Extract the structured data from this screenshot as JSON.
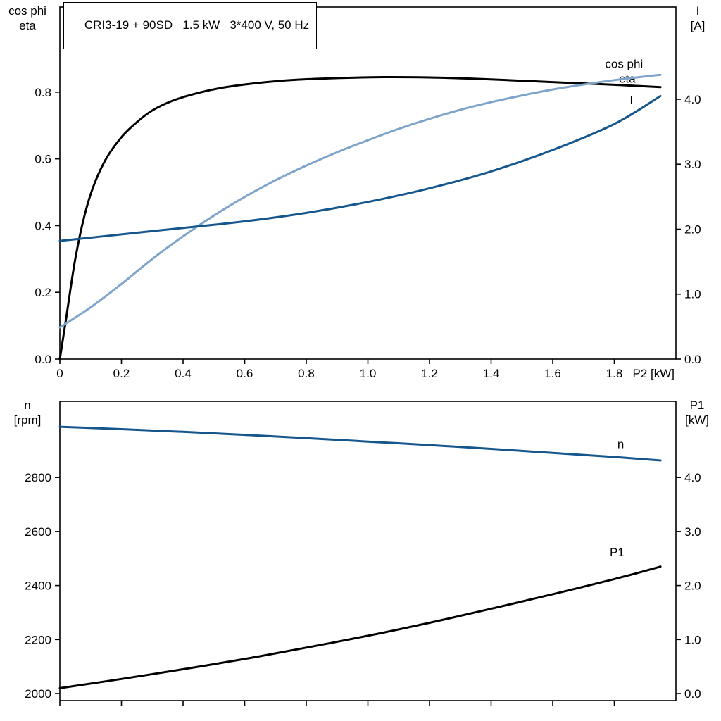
{
  "title_box": {
    "text": "CRI3-19 + 90SD   1.5 kW   3*400 V, 50 Hz"
  },
  "chart_data": [
    {
      "type": "line",
      "name": "motor-electrical-curves",
      "title": "CRI3-19 + 90SD   1.5 kW   3*400 V, 50 Hz",
      "grid": false,
      "x_axis": {
        "min": 0,
        "max": 2.0,
        "ticks": [
          0,
          0.2,
          0.4,
          0.6,
          0.8,
          1.0,
          1.2,
          1.4,
          1.6,
          1.8
        ],
        "tick_labels": [
          "0",
          "0.2",
          "0.4",
          "0.6",
          "0.8",
          "1.0",
          "1.2",
          "1.4",
          "1.6",
          "1.8"
        ],
        "end_label": "P2 [kW]"
      },
      "left_axis": {
        "title_lines": [
          "cos phi",
          "eta"
        ],
        "min": 0,
        "max": 1.055,
        "ticks": [
          0,
          0.2,
          0.4,
          0.6,
          0.8
        ],
        "labels": [
          "0.0",
          "0.2",
          "0.4",
          "0.6",
          "0.8"
        ]
      },
      "right_axis": {
        "title_lines": [
          "I",
          "[A]"
        ],
        "min": 0,
        "max": 5.42,
        "ticks": [
          0,
          1,
          2,
          3,
          4
        ],
        "labels": [
          "0.0",
          "1.0",
          "2.0",
          "3.0",
          "4.0"
        ]
      },
      "series": [
        {
          "name": "eta",
          "color": "#000000",
          "axis": "left",
          "label": {
            "text": "eta",
            "x": 1.815,
            "y": 0.828
          },
          "points": [
            [
              0,
              0
            ],
            [
              0.02,
              0.12
            ],
            [
              0.05,
              0.3
            ],
            [
              0.08,
              0.43
            ],
            [
              0.11,
              0.52
            ],
            [
              0.15,
              0.6
            ],
            [
              0.2,
              0.665
            ],
            [
              0.25,
              0.71
            ],
            [
              0.3,
              0.745
            ],
            [
              0.36,
              0.772
            ],
            [
              0.43,
              0.793
            ],
            [
              0.52,
              0.812
            ],
            [
              0.62,
              0.825
            ],
            [
              0.75,
              0.836
            ],
            [
              0.9,
              0.842
            ],
            [
              1.05,
              0.845
            ],
            [
              1.2,
              0.844
            ],
            [
              1.35,
              0.84
            ],
            [
              1.5,
              0.834
            ],
            [
              1.65,
              0.828
            ],
            [
              1.8,
              0.822
            ],
            [
              1.95,
              0.815
            ]
          ]
        },
        {
          "name": "cos phi",
          "color": "#7fa4c9",
          "axis": "left",
          "label": {
            "text": "cos phi",
            "x": 1.77,
            "y": 0.872
          },
          "points": [
            [
              0,
              0.095
            ],
            [
              0.1,
              0.155
            ],
            [
              0.2,
              0.225
            ],
            [
              0.3,
              0.3
            ],
            [
              0.4,
              0.368
            ],
            [
              0.5,
              0.43
            ],
            [
              0.6,
              0.486
            ],
            [
              0.7,
              0.536
            ],
            [
              0.8,
              0.58
            ],
            [
              0.9,
              0.62
            ],
            [
              1.0,
              0.656
            ],
            [
              1.1,
              0.69
            ],
            [
              1.2,
              0.72
            ],
            [
              1.3,
              0.747
            ],
            [
              1.4,
              0.77
            ],
            [
              1.5,
              0.79
            ],
            [
              1.6,
              0.808
            ],
            [
              1.7,
              0.823
            ],
            [
              1.8,
              0.836
            ],
            [
              1.9,
              0.847
            ],
            [
              1.95,
              0.852
            ]
          ]
        },
        {
          "name": "I",
          "color": "#15568d",
          "axis": "right",
          "label": {
            "text": "I",
            "x": 1.85,
            "y": 3.93
          },
          "points": [
            [
              0,
              1.82
            ],
            [
              0.2,
              1.92
            ],
            [
              0.4,
              2.02
            ],
            [
              0.6,
              2.12
            ],
            [
              0.8,
              2.25
            ],
            [
              1.0,
              2.42
            ],
            [
              1.2,
              2.63
            ],
            [
              1.4,
              2.89
            ],
            [
              1.6,
              3.22
            ],
            [
              1.8,
              3.62
            ],
            [
              1.95,
              4.05
            ]
          ]
        }
      ]
    },
    {
      "type": "line",
      "name": "motor-speed-power-curves",
      "title": "",
      "grid": false,
      "x_axis": {
        "min": 0,
        "max": 2.0,
        "ticks": [
          0,
          0.2,
          0.4,
          0.6,
          0.8,
          1.0,
          1.2,
          1.4,
          1.6,
          1.8
        ],
        "tick_labels": [
          "",
          "",
          "",
          "",
          "",
          "",
          "",
          "",
          "",
          ""
        ],
        "end_label": ""
      },
      "left_axis": {
        "title_lines": [
          "n",
          "[rpm]"
        ],
        "min": 1974,
        "max": 3082,
        "ticks": [
          2000,
          2200,
          2400,
          2600,
          2800
        ],
        "labels": [
          "2000",
          "2200",
          "2400",
          "2600",
          "2800"
        ]
      },
      "right_axis": {
        "title_lines": [
          "P1",
          "[kW]"
        ],
        "min": -0.13,
        "max": 5.41,
        "ticks": [
          0,
          1,
          2,
          3,
          4
        ],
        "labels": [
          "0.0",
          "1.0",
          "2.0",
          "3.0",
          "4.0"
        ]
      },
      "series": [
        {
          "name": "n",
          "color": "#15568d",
          "axis": "left",
          "label": {
            "text": "n",
            "x": 1.81,
            "y": 2908
          },
          "points": [
            [
              0,
              2988
            ],
            [
              0.2,
              2979
            ],
            [
              0.4,
              2969
            ],
            [
              0.6,
              2958
            ],
            [
              0.8,
              2946
            ],
            [
              1.0,
              2933
            ],
            [
              1.2,
              2920
            ],
            [
              1.4,
              2906
            ],
            [
              1.6,
              2891
            ],
            [
              1.8,
              2876
            ],
            [
              1.95,
              2863
            ]
          ]
        },
        {
          "name": "P1",
          "color": "#000000",
          "axis": "right",
          "label": {
            "text": "P1",
            "x": 1.785,
            "y": 2.54
          },
          "points": [
            [
              0,
              0.1
            ],
            [
              0.2,
              0.27
            ],
            [
              0.4,
              0.45
            ],
            [
              0.6,
              0.64
            ],
            [
              0.8,
              0.85
            ],
            [
              1.0,
              1.07
            ],
            [
              1.2,
              1.31
            ],
            [
              1.4,
              1.57
            ],
            [
              1.6,
              1.84
            ],
            [
              1.8,
              2.12
            ],
            [
              1.95,
              2.35
            ]
          ]
        }
      ]
    }
  ]
}
